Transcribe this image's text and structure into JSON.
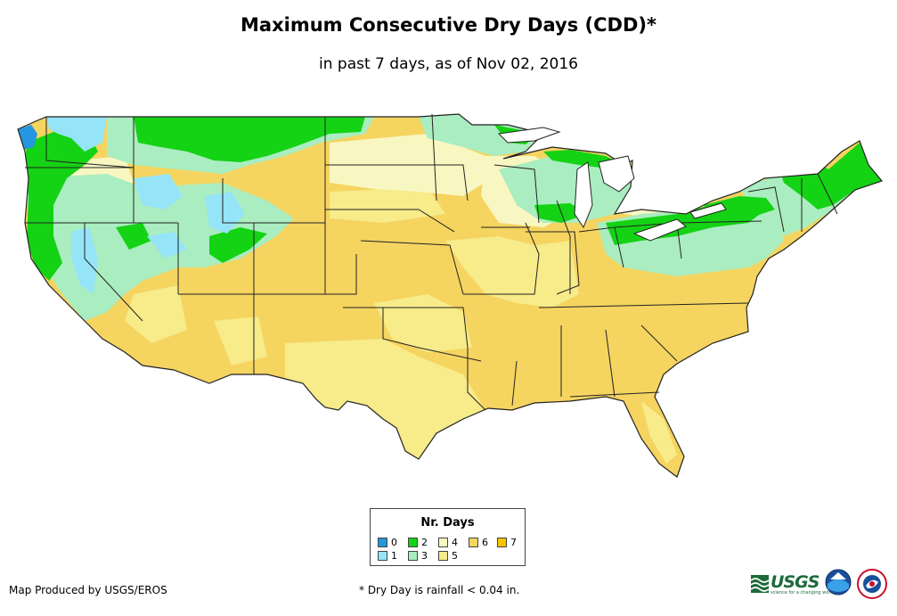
{
  "header": {
    "title": "Maximum Consecutive Dry Days (CDD)*",
    "subtitle": "in past 7 days, as of Nov 02, 2016"
  },
  "legend": {
    "title": "Nr. Days",
    "items": [
      {
        "label": "0",
        "color": "#2596e0"
      },
      {
        "label": "1",
        "color": "#96e4f8"
      },
      {
        "label": "2",
        "color": "#14d214"
      },
      {
        "label": "3",
        "color": "#aaedc0"
      },
      {
        "label": "4",
        "color": "#f8f7c2"
      },
      {
        "label": "5",
        "color": "#f7eb8a"
      },
      {
        "label": "6",
        "color": "#f5d460"
      },
      {
        "label": "7",
        "color": "#f5c400"
      }
    ]
  },
  "footer": {
    "credit": "Map Produced by USGS/EROS",
    "footnote": "* Dry Day is rainfall < 0.04 in."
  },
  "logos": [
    {
      "name": "usgs",
      "text": "USGS",
      "tagline": "science for a changing world"
    },
    {
      "name": "noaa",
      "text": "noaa"
    },
    {
      "name": "nws",
      "text": "NATIONAL WEATHER SERVICE"
    }
  ]
}
